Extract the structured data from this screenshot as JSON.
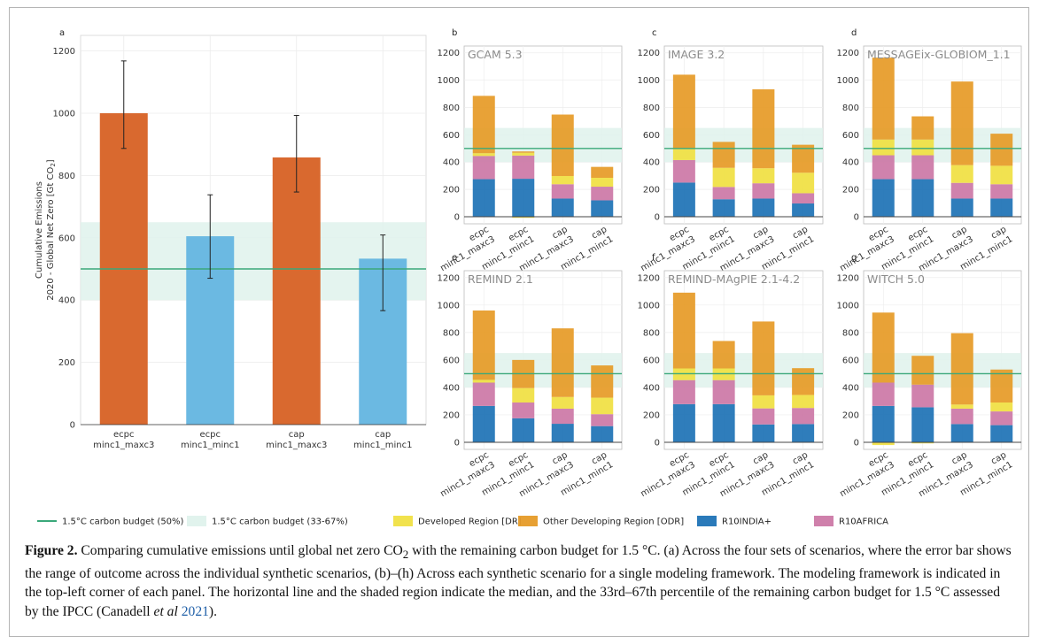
{
  "colors": {
    "budget_line": "#3aa87a",
    "budget_band": "#dff2ec",
    "DR": "#f0e043",
    "ODR": "#e69b28",
    "INDIA": "#1f73b6",
    "AFRICA": "#cc79a7",
    "ecpc_bar": "#d9692f",
    "cap_bar": "#6bb9e2"
  },
  "chart_data": [
    {
      "panel": "a",
      "type": "bar",
      "title": "",
      "ylabel_line1": "Cumulative Emissions",
      "ylabel_line2_prefix": "2020 - Global Net Zero [Gt CO",
      "ylabel_line2_sub": "2",
      "ylabel_line2_suffix": "]",
      "ylim": [
        0,
        1250
      ],
      "yticks": [
        0,
        200,
        400,
        600,
        800,
        1000,
        1200
      ],
      "categories": [
        [
          "ecpc",
          "minc1_maxc3"
        ],
        [
          "ecpc",
          "minc1_minc1"
        ],
        [
          "cap",
          "minc1_maxc3"
        ],
        [
          "cap",
          "minc1_minc1"
        ]
      ],
      "values": [
        1000,
        605,
        858,
        533
      ],
      "error_low": [
        887,
        470,
        747,
        366
      ],
      "error_high": [
        1168,
        738,
        993,
        609
      ],
      "budget_median": 500,
      "budget_band": [
        400,
        650
      ],
      "grid": true
    },
    {
      "panel": "b",
      "type": "stacked_bar",
      "title": "GCAM 5.3",
      "series": [
        {
          "key": "INDIA",
          "values": [
            275,
            278,
            133,
            120
          ]
        },
        {
          "key": "AFRICA",
          "values": [
            170,
            170,
            105,
            100
          ]
        },
        {
          "key": "DR",
          "values": [
            20,
            20,
            60,
            65
          ]
        },
        {
          "key": "ODR",
          "values": [
            420,
            10,
            450,
            80
          ]
        }
      ],
      "negative": [
        0,
        8,
        0,
        0
      ]
    },
    {
      "panel": "c",
      "type": "stacked_bar",
      "title": "IMAGE 3.2",
      "series": [
        {
          "key": "INDIA",
          "values": [
            250,
            128,
            133,
            97
          ]
        },
        {
          "key": "AFRICA",
          "values": [
            165,
            90,
            112,
            75
          ]
        },
        {
          "key": "DR",
          "values": [
            80,
            140,
            110,
            150
          ]
        },
        {
          "key": "ODR",
          "values": [
            545,
            190,
            578,
            205
          ]
        }
      ],
      "negative": [
        0,
        0,
        0,
        0
      ]
    },
    {
      "panel": "d",
      "type": "stacked_bar",
      "title": "MESSAGEix-GLOBIOM_1.1",
      "series": [
        {
          "key": "INDIA",
          "values": [
            275,
            275,
            133,
            133
          ]
        },
        {
          "key": "AFRICA",
          "values": [
            175,
            175,
            115,
            105
          ]
        },
        {
          "key": "DR",
          "values": [
            115,
            115,
            130,
            135
          ]
        },
        {
          "key": "ODR",
          "values": [
            600,
            170,
            612,
            235
          ]
        }
      ],
      "negative": [
        0,
        0,
        0,
        0
      ]
    },
    {
      "panel": "e",
      "type": "stacked_bar",
      "title": "REMIND 2.1",
      "series": [
        {
          "key": "INDIA",
          "values": [
            265,
            175,
            135,
            118
          ]
        },
        {
          "key": "AFRICA",
          "values": [
            170,
            115,
            110,
            87
          ]
        },
        {
          "key": "DR",
          "values": [
            20,
            105,
            85,
            120
          ]
        },
        {
          "key": "ODR",
          "values": [
            505,
            205,
            500,
            235
          ]
        }
      ],
      "negative": [
        0,
        0,
        0,
        0
      ]
    },
    {
      "panel": "f",
      "type": "stacked_bar",
      "title": "REMIND-MAgPIE 2.1-4.2",
      "series": [
        {
          "key": "INDIA",
          "values": [
            278,
            278,
            130,
            133
          ]
        },
        {
          "key": "AFRICA",
          "values": [
            175,
            175,
            117,
            117
          ]
        },
        {
          "key": "DR",
          "values": [
            85,
            85,
            95,
            95
          ]
        },
        {
          "key": "ODR",
          "values": [
            552,
            200,
            538,
            195
          ]
        }
      ],
      "negative": [
        0,
        0,
        0,
        0
      ]
    },
    {
      "panel": "g",
      "type": "stacked_bar",
      "title": "WITCH 5.0",
      "series": [
        {
          "key": "INDIA",
          "values": [
            265,
            255,
            133,
            125
          ]
        },
        {
          "key": "AFRICA",
          "values": [
            170,
            165,
            112,
            100
          ]
        },
        {
          "key": "DR",
          "values": [
            0,
            0,
            30,
            65
          ]
        },
        {
          "key": "ODR",
          "values": [
            510,
            210,
            520,
            240
          ]
        }
      ],
      "negative": [
        20,
        8,
        0,
        0
      ]
    }
  ],
  "small_panels_common": {
    "ylim": [
      0,
      1250
    ],
    "yticks": [
      0,
      200,
      400,
      600,
      800,
      1000,
      1200
    ],
    "categories": [
      [
        "ecpc",
        "minc1_maxc3"
      ],
      [
        "ecpc",
        "minc1_minc1"
      ],
      [
        "cap",
        "minc1_maxc3"
      ],
      [
        "cap",
        "minc1_minc1"
      ]
    ],
    "budget_median": 500,
    "budget_band": [
      400,
      650
    ]
  },
  "legend": [
    {
      "key": "budget_line",
      "kind": "line",
      "label": "1.5°C carbon budget (50%)"
    },
    {
      "key": "budget_band",
      "kind": "box",
      "label": "1.5°C carbon budget (33-67%)"
    },
    {
      "key": "DR",
      "kind": "box",
      "label": "Developed Region [DR]"
    },
    {
      "key": "ODR",
      "kind": "box",
      "label": "Other Developing Region [ODR]"
    },
    {
      "key": "INDIA",
      "kind": "box",
      "label": "R10INDIA+"
    },
    {
      "key": "AFRICA",
      "kind": "box",
      "label": "R10AFRICA"
    }
  ],
  "caption": {
    "label": "Figure 2.",
    "seg1": " Comparing cumulative emissions until global net zero CO",
    "sub1": "2",
    "seg2": " with the remaining carbon budget for 1.5 °C. (a) Across the four sets of scenarios, where the error bar shows the range of outcome across the individual synthetic scenarios, (b)–(h) Across each synthetic scenario for a single modeling framework. The modeling framework is indicated in the top-left corner of each panel. The horizontal line and the shaded region indicate the median, and the 33rd–67th percentile of the remaining carbon budget for 1.5 °C assessed by the IPCC (Canadell ",
    "etal": "et al",
    "year": "2021",
    "end": ")."
  }
}
